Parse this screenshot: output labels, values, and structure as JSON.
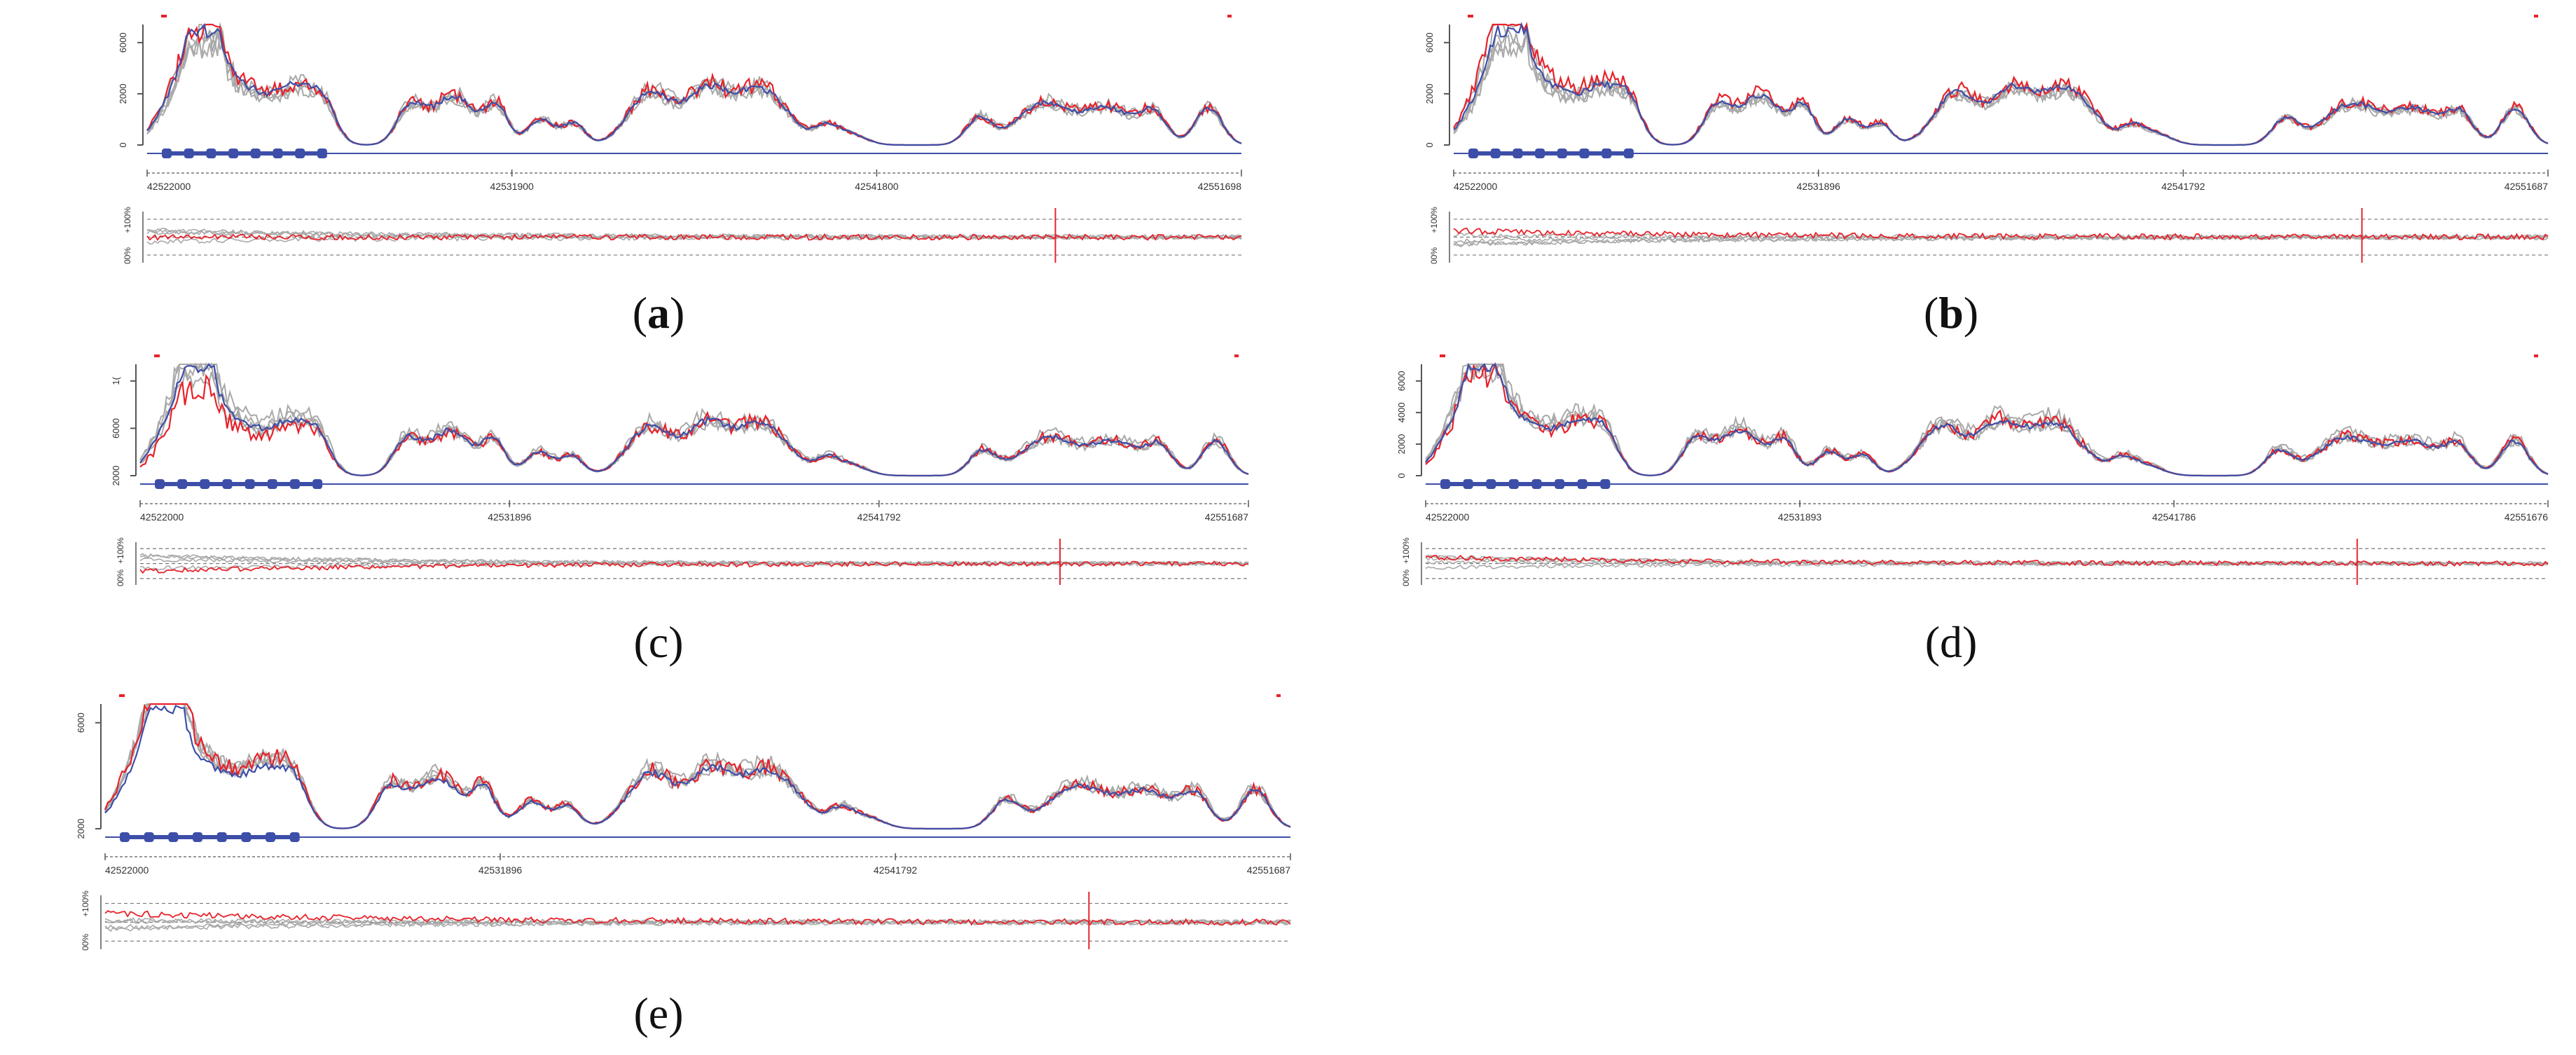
{
  "colors": {
    "sample": "#e8222a",
    "mean": "#3d4ea8",
    "reference": "#a9a9a9",
    "exon": "#3d4ea8",
    "axis": "#555555",
    "dashed": "#777777"
  },
  "chart_data": [
    {
      "type": "line",
      "caption_open": "(",
      "caption_letter": "a",
      "caption_close": ")",
      "y_ticks": [
        "0",
        "2000",
        "6000"
      ],
      "ylim": [
        0,
        8000
      ],
      "x_ticks": [
        "42522000",
        "42531900",
        "42541800",
        "42551698"
      ],
      "x_range": [
        42522000,
        42551698
      ],
      "exon_count": 8,
      "sample_offset": 0.0,
      "ratio_ticks": [
        "+100%",
        "00%"
      ],
      "ratio_offset": 0.0,
      "seed": 11
    },
    {
      "type": "line",
      "caption_open": "(",
      "caption_letter": "b",
      "caption_close": ")",
      "y_ticks": [
        "0",
        "2000",
        "6000"
      ],
      "ylim": [
        0,
        8000
      ],
      "x_ticks": [
        "42522000",
        "42531896",
        "42541792",
        "42551687"
      ],
      "x_range": [
        42522000,
        42551687
      ],
      "exon_count": 8,
      "sample_offset": 0.18,
      "ratio_ticks": [
        "+100%",
        "00%"
      ],
      "ratio_offset": 0.25,
      "seed": 23
    },
    {
      "type": "line",
      "caption_open": "(",
      "caption_letter": "c",
      "caption_close": ")",
      "y_ticks": [
        "2000",
        "6000",
        "1("
      ],
      "ylim": [
        0,
        8000
      ],
      "x_ticks": [
        "42522000",
        "42531896",
        "42541792",
        "42551687"
      ],
      "x_range": [
        42522000,
        42551687
      ],
      "exon_count": 8,
      "sample_offset": -0.3,
      "ratio_ticks": [
        "+100%",
        "00%"
      ],
      "ratio_offset": -0.35,
      "seed": 37
    },
    {
      "type": "line",
      "caption_open": "(",
      "caption_letter": "d",
      "caption_close": ")",
      "y_ticks": [
        "0",
        "2000",
        "4000",
        "6000"
      ],
      "ylim": [
        0,
        6000
      ],
      "x_ticks": [
        "42522000",
        "42531893",
        "42541786",
        "42551676"
      ],
      "x_range": [
        42522000,
        42551676
      ],
      "exon_count": 8,
      "sample_offset": -0.1,
      "ratio_ticks": [
        "+100%",
        "00%"
      ],
      "ratio_offset": 0.3,
      "seed": 51
    },
    {
      "type": "line",
      "caption_open": "(",
      "caption_letter": "e",
      "caption_close": ")",
      "y_ticks": [
        "2000",
        "6000"
      ],
      "ylim": [
        0,
        8000
      ],
      "x_ticks": [
        "42522000",
        "42531896",
        "42541792",
        "42551687"
      ],
      "x_range": [
        42522000,
        42551687
      ],
      "exon_count": 8,
      "sample_offset": 0.22,
      "ratio_ticks": [
        "+100%",
        "00%"
      ],
      "ratio_offset": 0.35,
      "seed": 73
    }
  ]
}
